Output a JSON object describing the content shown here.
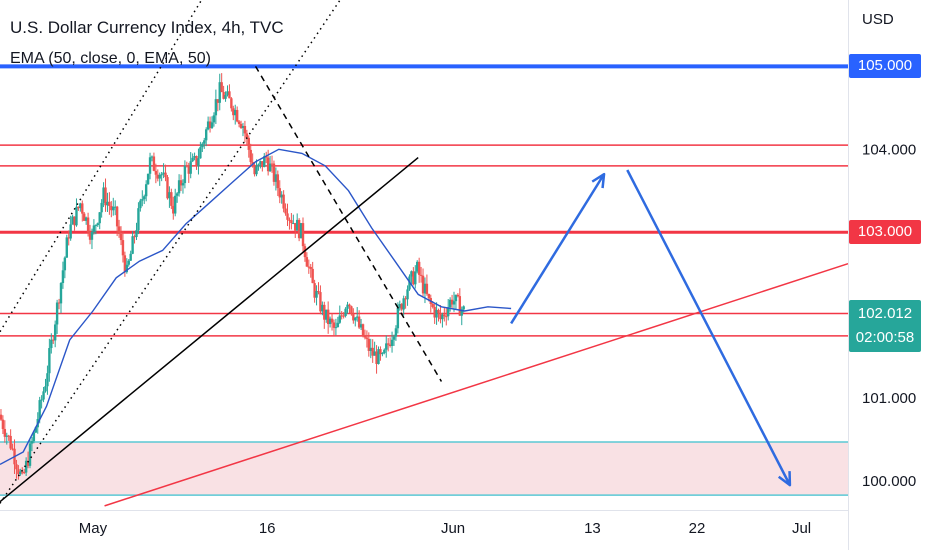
{
  "header": {
    "title": "U.S. Dollar Currency Index, 4h, TVC",
    "indicator": "EMA (50, close, 0, EMA, 50)"
  },
  "price_scale": {
    "currency": "USD",
    "ticks": [
      "104.000",
      "101.000",
      "100.000"
    ],
    "highlighted_levels": [
      {
        "label": "105.000",
        "color": "#2962ff"
      },
      {
        "label": "103.000",
        "color": "#f23645"
      }
    ],
    "last_price": {
      "label": "102.012",
      "countdown": "02:00:58",
      "color": "#26a69a"
    }
  },
  "time_axis": {
    "labels": [
      "May",
      "16",
      "Jun",
      "13",
      "22",
      "Jul"
    ]
  },
  "chart_data": {
    "type": "candlestick",
    "title": "U.S. Dollar Currency Index, 4h, TVC",
    "ylabel": "USD",
    "ylim": [
      99.65,
      105.8
    ],
    "x_axis": "date",
    "xlim": [
      "2023-04-23",
      "2023-07-05"
    ],
    "series": [
      {
        "name": "EMA (50, close, 0, EMA, 50)",
        "type": "line",
        "color": "#2b56c8",
        "points": [
          [
            "2023-04-23",
            100.2
          ],
          [
            "2023-04-25",
            100.35
          ],
          [
            "2023-04-27",
            100.9
          ],
          [
            "2023-04-29",
            101.7
          ],
          [
            "2023-05-01",
            102.05
          ],
          [
            "2023-05-03",
            102.45
          ],
          [
            "2023-05-05",
            102.65
          ],
          [
            "2023-05-07",
            102.78
          ],
          [
            "2023-05-09",
            103.1
          ],
          [
            "2023-05-11",
            103.35
          ],
          [
            "2023-05-13",
            103.6
          ],
          [
            "2023-05-15",
            103.85
          ],
          [
            "2023-05-17",
            104.0
          ],
          [
            "2023-05-19",
            103.95
          ],
          [
            "2023-05-21",
            103.8
          ],
          [
            "2023-05-23",
            103.5
          ],
          [
            "2023-05-25",
            103.05
          ],
          [
            "2023-05-27",
            102.65
          ],
          [
            "2023-05-29",
            102.25
          ],
          [
            "2023-05-31",
            102.1
          ],
          [
            "2023-06-02",
            102.05
          ],
          [
            "2023-06-04",
            102.1
          ],
          [
            "2023-06-06",
            102.08
          ]
        ]
      },
      {
        "name": "Price",
        "type": "candlestick",
        "up_color": "#26a69a",
        "down_color": "#ef5350",
        "path": [
          [
            "2023-04-23",
            100.8
          ],
          [
            "2023-04-24",
            100.45
          ],
          [
            "2023-04-25",
            100.0
          ],
          [
            "2023-04-26",
            100.55
          ],
          [
            "2023-04-27",
            101.2
          ],
          [
            "2023-04-28",
            102.1
          ],
          [
            "2023-04-29",
            103.0
          ],
          [
            "2023-04-30",
            103.35
          ],
          [
            "2023-05-01",
            102.95
          ],
          [
            "2023-05-02",
            103.45
          ],
          [
            "2023-05-03",
            103.2
          ],
          [
            "2023-05-04",
            102.5
          ],
          [
            "2023-05-05",
            103.2
          ],
          [
            "2023-05-06",
            103.85
          ],
          [
            "2023-05-07",
            103.7
          ],
          [
            "2023-05-08",
            103.3
          ],
          [
            "2023-05-09",
            103.75
          ],
          [
            "2023-05-10",
            103.85
          ],
          [
            "2023-05-11",
            104.3
          ],
          [
            "2023-05-12",
            104.7
          ],
          [
            "2023-05-13",
            104.55
          ],
          [
            "2023-05-14",
            104.3
          ],
          [
            "2023-05-15",
            103.7
          ],
          [
            "2023-05-16",
            103.9
          ],
          [
            "2023-05-17",
            103.55
          ],
          [
            "2023-05-18",
            103.2
          ],
          [
            "2023-05-19",
            103.0
          ],
          [
            "2023-05-20",
            102.35
          ],
          [
            "2023-05-21",
            102.0
          ],
          [
            "2023-05-22",
            101.8
          ],
          [
            "2023-05-23",
            102.2
          ],
          [
            "2023-05-24",
            101.85
          ],
          [
            "2023-05-25",
            101.55
          ],
          [
            "2023-05-26",
            101.45
          ],
          [
            "2023-05-27",
            101.85
          ],
          [
            "2023-05-28",
            102.3
          ],
          [
            "2023-05-29",
            102.55
          ],
          [
            "2023-05-30",
            102.15
          ],
          [
            "2023-05-31",
            101.95
          ],
          [
            "2023-06-01",
            102.2
          ],
          [
            "2023-06-02",
            102.05
          ]
        ]
      },
      {
        "name": "Resistance",
        "type": "hline",
        "value": 105.0,
        "color": "#2962ff"
      },
      {
        "name": "Resistance",
        "type": "hline",
        "value": 104.05,
        "color": "#f23645"
      },
      {
        "name": "Resistance",
        "type": "hline",
        "value": 103.8,
        "color": "#f23645"
      },
      {
        "name": "Resistance",
        "type": "hline",
        "value": 103.0,
        "color": "#f23645"
      },
      {
        "name": "Support",
        "type": "hline",
        "value": 102.02,
        "color": "#f23645"
      },
      {
        "name": "Support",
        "type": "hline",
        "value": 101.75,
        "color": "#f23645"
      },
      {
        "name": "Demand zone",
        "type": "band",
        "from": 99.83,
        "to": 100.47,
        "color": "#f9e1e4",
        "border": "#5cc8d4"
      },
      {
        "name": "Trendline",
        "type": "segment",
        "from": [
          "2023-04-23",
          99.75
        ],
        "to": [
          "2023-05-29",
          103.9
        ],
        "color": "#000000",
        "style": "solid"
      },
      {
        "name": "Trendline",
        "type": "segment",
        "from": [
          "2023-05-02",
          99.7
        ],
        "to": [
          "2023-07-05",
          102.62
        ],
        "color": "#f23645",
        "style": "solid"
      },
      {
        "name": "Channel",
        "type": "segment",
        "from": [
          "2023-04-23",
          99.73
        ],
        "to": [
          "2023-05-23",
          105.95
        ],
        "color": "#000000",
        "style": "dotted"
      },
      {
        "name": "Channel",
        "type": "segment",
        "from": [
          "2023-04-23",
          101.8
        ],
        "to": [
          "2023-05-11",
          105.95
        ],
        "color": "#000000",
        "style": "dotted"
      },
      {
        "name": "Downtrend",
        "type": "segment",
        "from": [
          "2023-05-15",
          105.0
        ],
        "to": [
          "2023-05-31",
          101.2
        ],
        "color": "#000000",
        "style": "dashed"
      },
      {
        "name": "Projection",
        "type": "arrow",
        "from": [
          "2023-06-06",
          101.9
        ],
        "to": [
          "2023-06-14",
          103.7
        ],
        "color": "#2f6be0"
      },
      {
        "name": "Projection",
        "type": "arrow",
        "from": [
          "2023-06-16",
          103.75
        ],
        "to": [
          "2023-06-30",
          99.95
        ],
        "color": "#2f6be0"
      }
    ]
  }
}
